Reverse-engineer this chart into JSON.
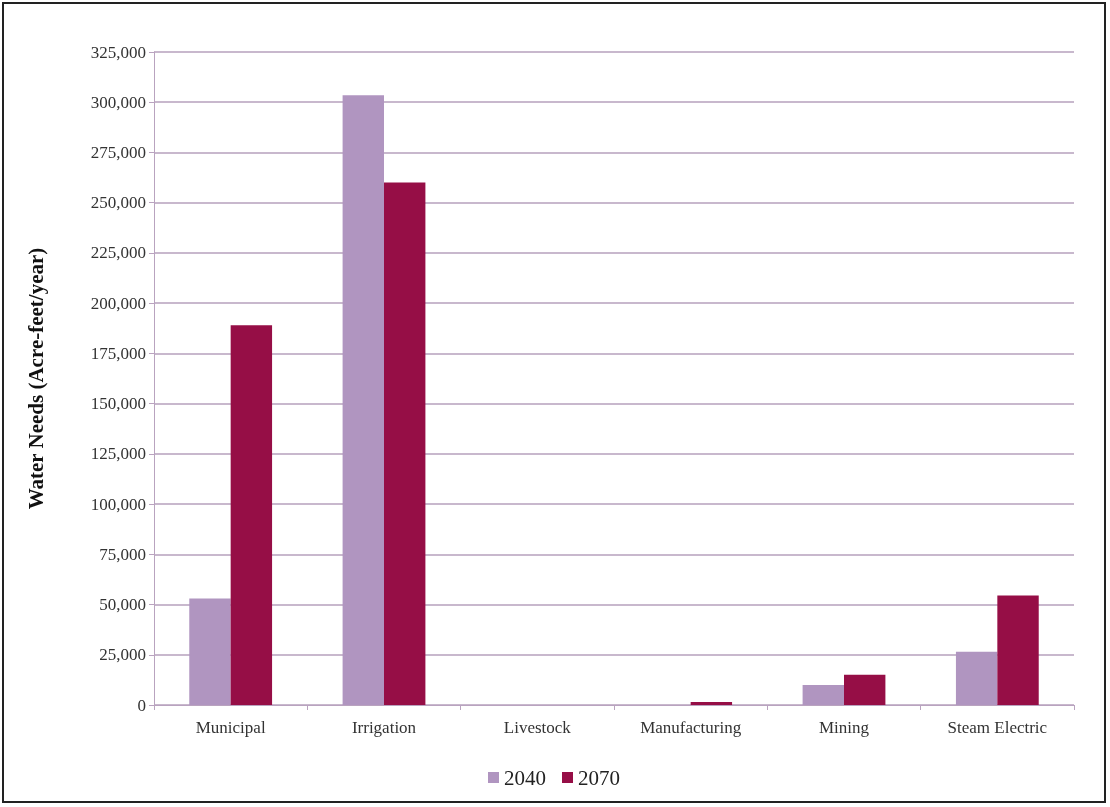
{
  "chart_data": {
    "type": "bar",
    "ylabel": "Water Needs (Acre-feet/year)",
    "categories": [
      "Municipal",
      "Irrigation",
      "Livestock",
      "Manufacturing",
      "Mining",
      "Steam Electric"
    ],
    "series": [
      {
        "name": "2040",
        "color": "#b095c0",
        "values": [
          53000,
          303500,
          0,
          null,
          10000,
          26500
        ]
      },
      {
        "name": "2070",
        "color": "#960e46",
        "values": [
          189000,
          260000,
          0,
          1500,
          15000,
          54500
        ]
      }
    ],
    "ylim": [
      0,
      325000
    ],
    "yticks": [
      {
        "value": 0,
        "label": "0"
      },
      {
        "value": 25000,
        "label": "25,000"
      },
      {
        "value": 50000,
        "label": "50,000"
      },
      {
        "value": 75000,
        "label": "75,000"
      },
      {
        "value": 100000,
        "label": "100,000"
      },
      {
        "value": 125000,
        "label": "125,000"
      },
      {
        "value": 150000,
        "label": "150,000"
      },
      {
        "value": 175000,
        "label": "175,000"
      },
      {
        "value": 200000,
        "label": "200,000"
      },
      {
        "value": 225000,
        "label": "225,000"
      },
      {
        "value": 250000,
        "label": "250,000"
      },
      {
        "value": 275000,
        "label": "275,000"
      },
      {
        "value": 300000,
        "label": "300,000"
      },
      {
        "value": 325000,
        "label": "325,000"
      }
    ],
    "grid": "y",
    "legend": "bottom"
  }
}
